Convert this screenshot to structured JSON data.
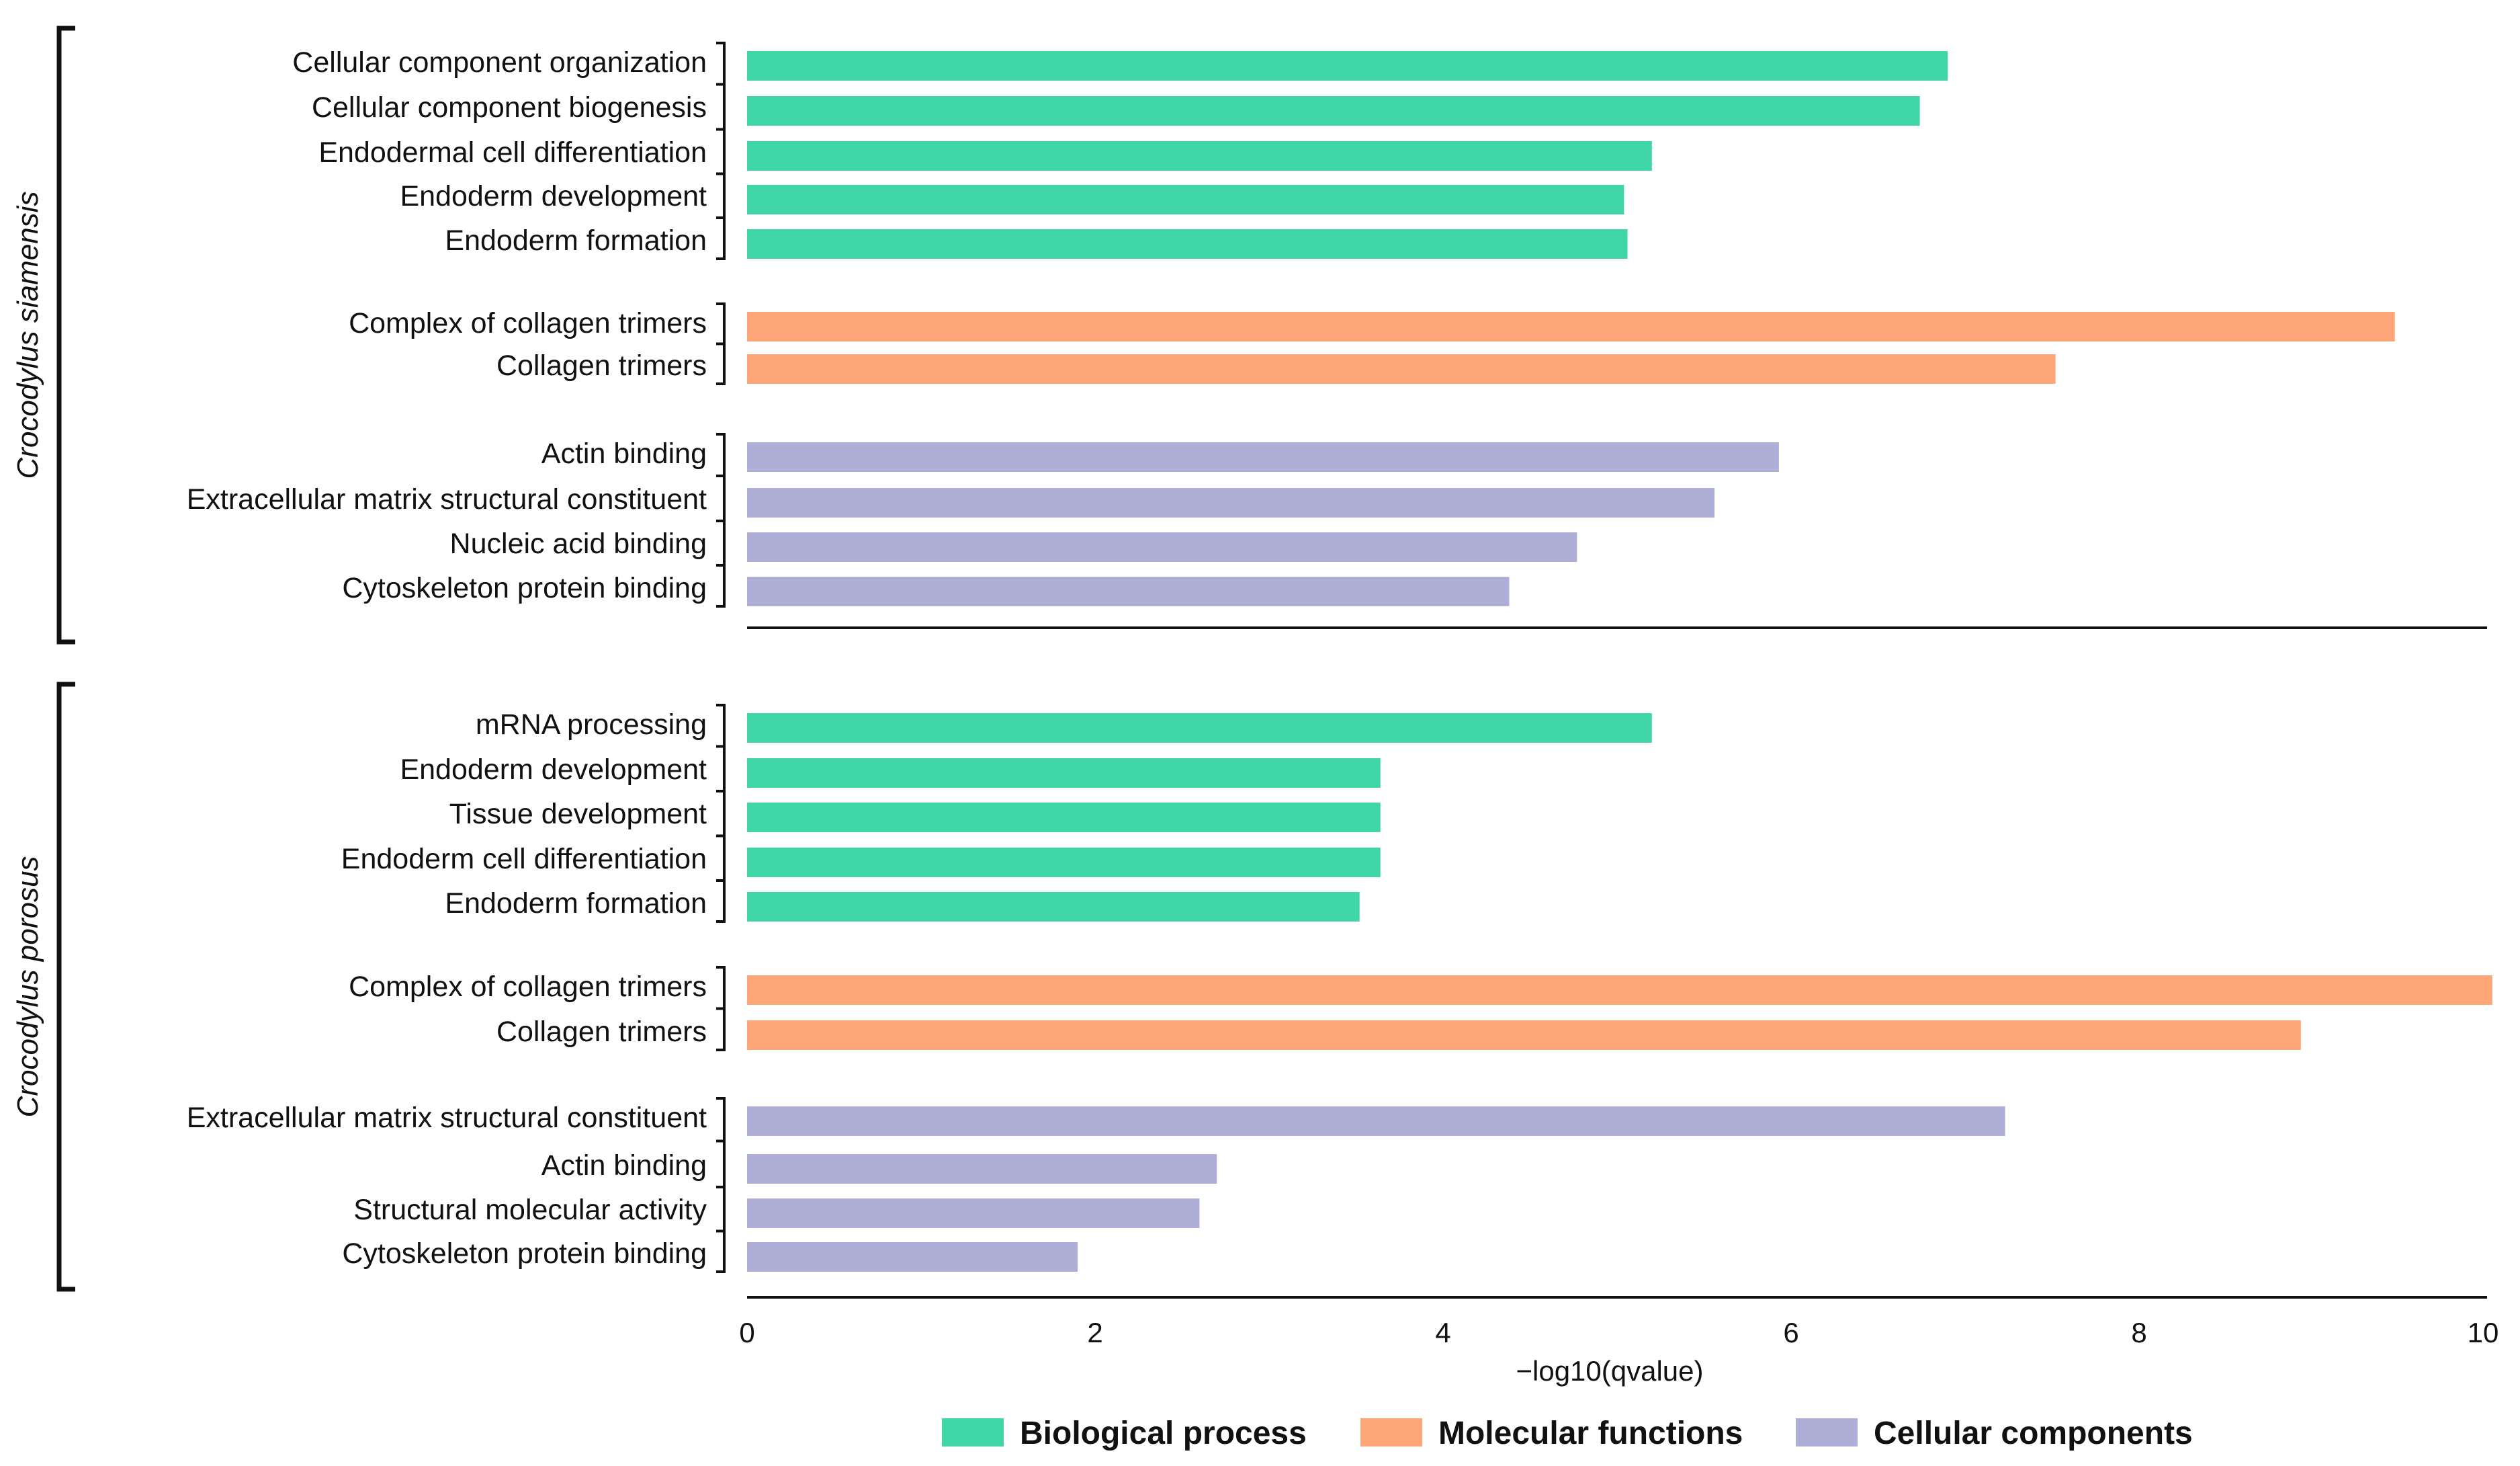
{
  "chart_data": {
    "type": "bar",
    "orientation": "horizontal",
    "xlabel": "−log10(qvalue)",
    "xlim": [
      0,
      10
    ],
    "xticks": [
      0,
      2,
      4,
      6,
      8,
      10
    ],
    "tick_labels": [
      "0",
      "2",
      "4",
      "6",
      "8",
      "10"
    ],
    "legend": {
      "position": "bottom",
      "entries": [
        {
          "key": "bp",
          "label": "Biological process",
          "color": "#41D6A8"
        },
        {
          "key": "mf",
          "label": "Molecular functions",
          "color": "#FFA679"
        },
        {
          "key": "cc",
          "label": "Cellular components",
          "color": "#AFAED6"
        }
      ]
    },
    "panels": [
      {
        "species": "Crocodylus siamensis",
        "groups": [
          {
            "key": "bp",
            "items": [
              {
                "label": "Cellular component organization",
                "value": 6.9
              },
              {
                "label": "Cellular component biogenesis",
                "value": 6.74
              },
              {
                "label": "Endodermal cell differentiation",
                "value": 5.2
              },
              {
                "label": "Endoderm development",
                "value": 5.04
              },
              {
                "label": "Endoderm formation",
                "value": 5.06
              }
            ]
          },
          {
            "key": "mf",
            "items": [
              {
                "label": "Complex of collagen trimers",
                "value": 9.47
              },
              {
                "label": "Collagen trimers",
                "value": 7.52
              }
            ]
          },
          {
            "key": "cc",
            "items": [
              {
                "label": "Actin binding",
                "value": 5.93
              },
              {
                "label": "Extracellular matrix structural constituent",
                "value": 5.56
              },
              {
                "label": "Nucleic acid binding",
                "value": 4.77
              },
              {
                "label": "Cytoskeleton protein binding",
                "value": 4.38
              }
            ]
          }
        ]
      },
      {
        "species": "Crocodylus porosus",
        "groups": [
          {
            "key": "bp",
            "items": [
              {
                "label": "mRNA processing",
                "value": 5.2
              },
              {
                "label": "Endoderm development",
                "value": 3.64
              },
              {
                "label": "Tissue development",
                "value": 3.64
              },
              {
                "label": "Endoderm cell differentiation",
                "value": 3.64
              },
              {
                "label": "Endoderm formation",
                "value": 3.52
              }
            ]
          },
          {
            "key": "mf",
            "items": [
              {
                "label": "Complex of collagen trimers",
                "value": 10.03
              },
              {
                "label": "Collagen trimers",
                "value": 8.93
              }
            ]
          },
          {
            "key": "cc",
            "items": [
              {
                "label": "Extracellular matrix structural constituent",
                "value": 7.23
              },
              {
                "label": "Actin binding",
                "value": 2.7
              },
              {
                "label": "Structural molecular activity",
                "value": 2.6
              },
              {
                "label": "Cytoskeleton protein binding",
                "value": 1.9
              }
            ]
          }
        ]
      }
    ]
  }
}
